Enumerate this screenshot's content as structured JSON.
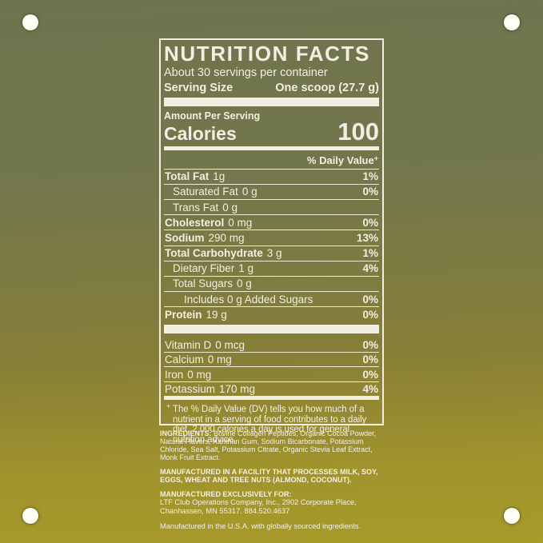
{
  "colors": {
    "background_top": "#6f744f",
    "background_bottom": "#a89b29",
    "ink": "#f2efe2"
  },
  "label": {
    "title": "NUTRITION FACTS",
    "servings": "About 30 servings per container",
    "serving_size_label": "Serving Size",
    "serving_size_value": "One scoop (27.7 g)",
    "amount_per_serving": "Amount Per Serving",
    "calories_label": "Calories",
    "calories_value": "100",
    "daily_value_header": "% Daily Value",
    "daily_value_symbol": "+",
    "rows": [
      {
        "name": "Total Fat",
        "amount": "1g",
        "dv": "1%"
      },
      {
        "name": "Saturated Fat",
        "amount": "0 g",
        "dv": "0%"
      },
      {
        "name": "Trans Fat",
        "amount": "0 g",
        "dv": ""
      },
      {
        "name": "Cholesterol",
        "amount": "0 mg",
        "dv": "0%"
      },
      {
        "name": "Sodium",
        "amount": "290 mg",
        "dv": "13%"
      },
      {
        "name": "Total Carbohydrate",
        "amount": "3 g",
        "dv": "1%"
      },
      {
        "name": "Dietary Fiber",
        "amount": "1 g",
        "dv": "4%"
      },
      {
        "name": "Total Sugars",
        "amount": "0 g",
        "dv": ""
      },
      {
        "name": "Includes 0 g Added Sugars",
        "amount": "",
        "dv": "0%"
      },
      {
        "name": "Protein",
        "amount": "19 g",
        "dv": "0%"
      }
    ],
    "vitamins": [
      {
        "name": "Vitamin D",
        "amount": "0 mcg",
        "dv": "0%"
      },
      {
        "name": "Calcium",
        "amount": "0 mg",
        "dv": "0%"
      },
      {
        "name": "Iron",
        "amount": "0 mg",
        "dv": "0%"
      },
      {
        "name": "Potassium",
        "amount": "170 mg",
        "dv": "4%"
      }
    ],
    "footnote_symbol": "+",
    "footnote": "The % Daily Value (DV) tells you how much of a nutrient in a serving of food contributes to a daily diet. 2,000 calories a day is used for general nutrition advice."
  },
  "info": {
    "ingredients_label": "INGREDIENTS:",
    "ingredients": " Bovine Collagen Peptides, Organic Cocoa Powder, Natural Flavors, Xanthan Gum, Sodium Bicarbonate, Potassium Chloride, Sea Salt, Potassium Citrate, Organic Stevia Leaf Extract, Monk Fruit Extract.",
    "allergen": "MANUFACTURED IN A FACILITY THAT PROCESSES MILK, SOY, EGGS, WHEAT AND TREE NUTS (ALMOND, COCONUT).",
    "manufactured_for_label": "MANUFACTURED EXCLUSIVELY FOR:",
    "manufactured_for": "LTF Club Operations Company, Inc., 2902 Corporate Place, Chanhassen, MN 55317. 884.520.4637",
    "made_in": "Manufactured in the U.S.A. with globally sourced ingredients."
  }
}
